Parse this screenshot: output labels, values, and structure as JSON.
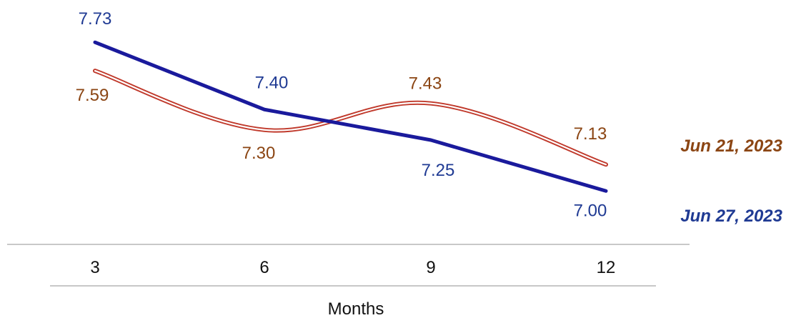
{
  "chart_data": {
    "type": "line",
    "xlabel": "Months",
    "ylabel": "",
    "categories": [
      "3",
      "6",
      "9",
      "12"
    ],
    "x": [
      3,
      6,
      9,
      12
    ],
    "ylim": [
      6.85,
      7.85
    ],
    "grid": false,
    "legend_position": "right",
    "series": [
      {
        "name": "Jun 21, 2023",
        "values": [
          7.59,
          7.3,
          7.43,
          7.13
        ],
        "labels": [
          "7.59",
          "7.30",
          "7.43",
          "7.13"
        ],
        "color": "#8B4513",
        "line_color": "#C0392B",
        "style": "double-line-smooth"
      },
      {
        "name": "Jun 27, 2023",
        "values": [
          7.73,
          7.4,
          7.25,
          7.0
        ],
        "labels": [
          "7.73",
          "7.40",
          "7.25",
          "7.00"
        ],
        "color": "#1F3A93",
        "line_color": "#1A1A9C",
        "style": "solid"
      }
    ]
  }
}
